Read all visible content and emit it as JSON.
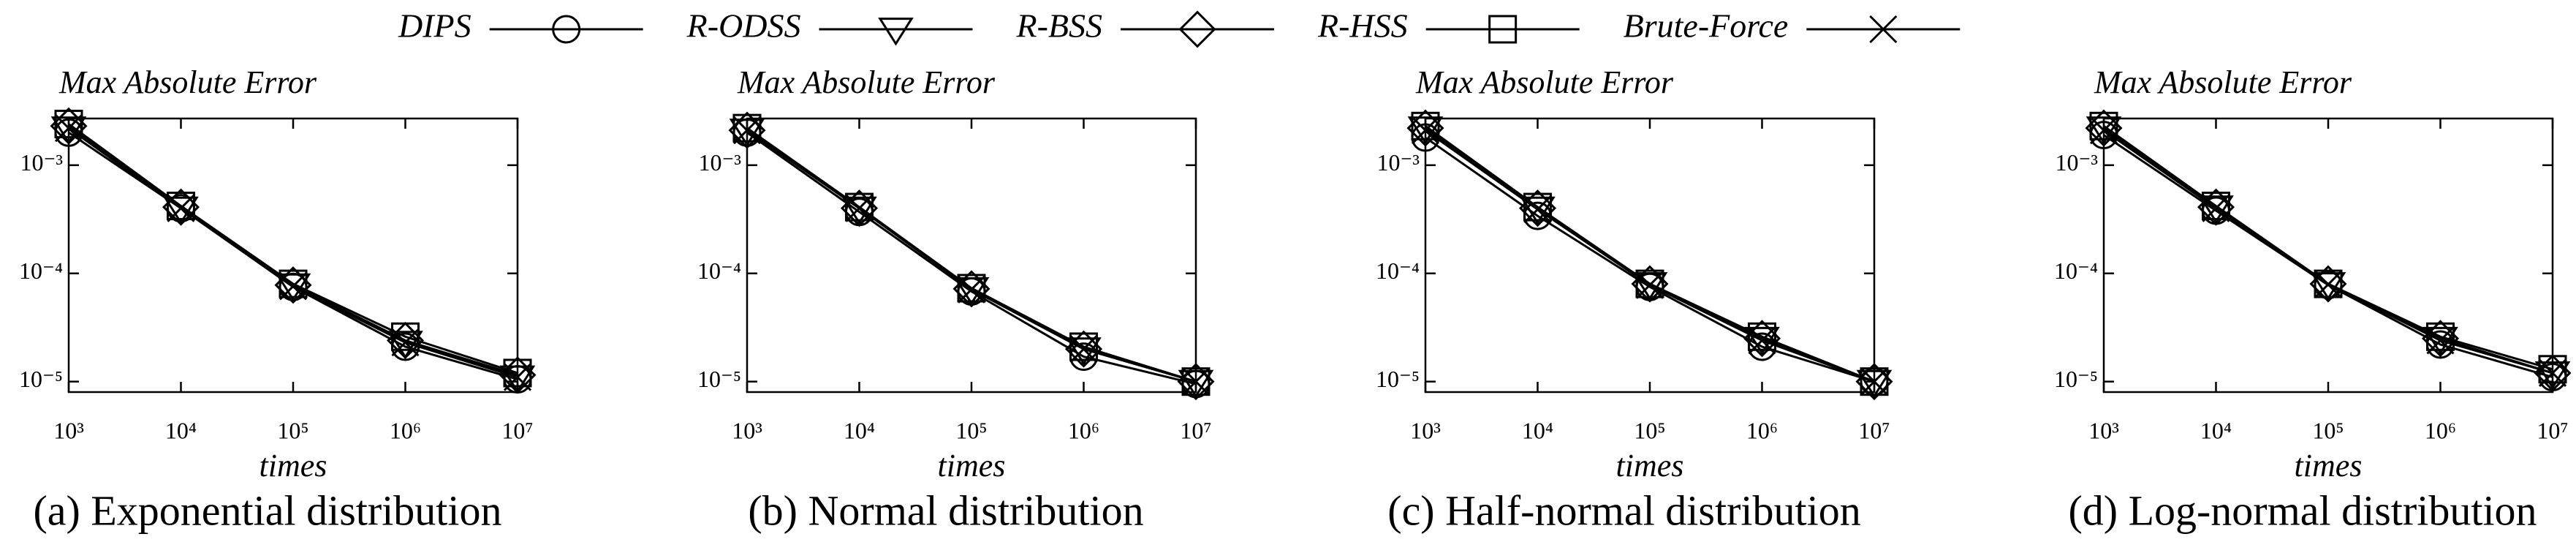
{
  "chart_data": [
    {
      "type": "line",
      "title": "Max Absolute Error",
      "xlabel": "times",
      "caption": "(a) Exponential distribution",
      "xscale": "log",
      "yscale": "log",
      "x": [
        1000,
        10000,
        100000,
        1000000,
        10000000
      ],
      "xlim": [
        1000,
        10000000
      ],
      "xticks": [
        {
          "value": 1000,
          "label": "10³"
        },
        {
          "value": 10000,
          "label": "10⁴"
        },
        {
          "value": 100000,
          "label": "10⁵"
        },
        {
          "value": 1000000,
          "label": "10⁶"
        },
        {
          "value": 10000000,
          "label": "10⁷"
        }
      ],
      "ylim": [
        8e-06,
        0.0027
      ],
      "yticks": [
        {
          "value": 1e-05,
          "label": "10⁻⁵"
        },
        {
          "value": 0.0001,
          "label": "10⁻⁴"
        },
        {
          "value": 0.001,
          "label": "10⁻³"
        }
      ],
      "series": [
        {
          "name": "DIPS",
          "color": "#000000",
          "marker": "circle",
          "values": [
            0.002,
            0.0004,
            7.5e-05,
            2.1e-05,
            1.05e-05
          ]
        },
        {
          "name": "R-ODSS",
          "color": "#000000",
          "marker": "triangle-down",
          "values": [
            0.0022,
            0.0004,
            7.8e-05,
            2.3e-05,
            1.1e-05
          ]
        },
        {
          "name": "R-BSS",
          "color": "#000000",
          "marker": "diamond",
          "values": [
            0.0023,
            0.00041,
            7.8e-05,
            2.4e-05,
            1.15e-05
          ]
        },
        {
          "name": "R-HSS",
          "color": "#000000",
          "marker": "square",
          "values": [
            0.0024,
            0.00042,
            8e-05,
            2.6e-05,
            1.2e-05
          ]
        },
        {
          "name": "Brute-Force",
          "color": "#000000",
          "marker": "x",
          "values": [
            0.0022,
            0.0004,
            7.6e-05,
            2.3e-05,
            1.1e-05
          ]
        }
      ]
    },
    {
      "type": "line",
      "title": "Max Absolute Error",
      "xlabel": "times",
      "caption": "(b) Normal distribution",
      "xscale": "log",
      "yscale": "log",
      "x": [
        1000,
        10000,
        100000,
        1000000,
        10000000
      ],
      "xlim": [
        1000,
        10000000
      ],
      "xticks": [
        {
          "value": 1000,
          "label": "10³"
        },
        {
          "value": 10000,
          "label": "10⁴"
        },
        {
          "value": 100000,
          "label": "10⁵"
        },
        {
          "value": 1000000,
          "label": "10⁶"
        },
        {
          "value": 10000000,
          "label": "10⁷"
        }
      ],
      "ylim": [
        8e-06,
        0.0027
      ],
      "yticks": [
        {
          "value": 1e-05,
          "label": "10⁻⁵"
        },
        {
          "value": 0.0001,
          "label": "10⁻⁴"
        },
        {
          "value": 0.001,
          "label": "10⁻³"
        }
      ],
      "series": [
        {
          "name": "DIPS",
          "color": "#000000",
          "marker": "circle",
          "values": [
            0.002,
            0.00037,
            6.8e-05,
            1.7e-05,
            9.5e-06
          ]
        },
        {
          "name": "R-ODSS",
          "color": "#000000",
          "marker": "triangle-down",
          "values": [
            0.0021,
            0.0004,
            7.2e-05,
            2e-05,
            1e-05
          ]
        },
        {
          "name": "R-BSS",
          "color": "#000000",
          "marker": "diamond",
          "values": [
            0.0021,
            0.0004,
            7.2e-05,
            2e-05,
            1e-05
          ]
        },
        {
          "name": "R-HSS",
          "color": "#000000",
          "marker": "square",
          "values": [
            0.0022,
            0.00041,
            7.3e-05,
            2.1e-05,
            1e-05
          ]
        },
        {
          "name": "Brute-Force",
          "color": "#000000",
          "marker": "x",
          "values": [
            0.0021,
            0.0004,
            7.1e-05,
            2e-05,
            1e-05
          ]
        }
      ]
    },
    {
      "type": "line",
      "title": "Max Absolute Error",
      "xlabel": "times",
      "caption": "(c) Half-normal distribution",
      "xscale": "log",
      "yscale": "log",
      "x": [
        1000,
        10000,
        100000,
        1000000,
        10000000
      ],
      "xlim": [
        1000,
        10000000
      ],
      "xticks": [
        {
          "value": 1000,
          "label": "10³"
        },
        {
          "value": 10000,
          "label": "10⁴"
        },
        {
          "value": 100000,
          "label": "10⁵"
        },
        {
          "value": 1000000,
          "label": "10⁶"
        },
        {
          "value": 10000000,
          "label": "10⁷"
        }
      ],
      "ylim": [
        8e-06,
        0.0027
      ],
      "yticks": [
        {
          "value": 1e-05,
          "label": "10⁻⁵"
        },
        {
          "value": 0.0001,
          "label": "10⁻⁴"
        },
        {
          "value": 0.001,
          "label": "10⁻³"
        }
      ],
      "series": [
        {
          "name": "DIPS",
          "color": "#000000",
          "marker": "circle",
          "values": [
            0.0018,
            0.00034,
            7.5e-05,
            2.1e-05,
            1e-05
          ]
        },
        {
          "name": "R-ODSS",
          "color": "#000000",
          "marker": "triangle-down",
          "values": [
            0.0022,
            0.0004,
            8e-05,
            2.5e-05,
            1e-05
          ]
        },
        {
          "name": "R-BSS",
          "color": "#000000",
          "marker": "diamond",
          "values": [
            0.0022,
            0.0004,
            8e-05,
            2.5e-05,
            1e-05
          ]
        },
        {
          "name": "R-HSS",
          "color": "#000000",
          "marker": "square",
          "values": [
            0.0023,
            0.00041,
            8e-05,
            2.6e-05,
            1e-05
          ]
        },
        {
          "name": "Brute-Force",
          "color": "#000000",
          "marker": "x",
          "values": [
            0.0021,
            0.00039,
            7.8e-05,
            2.4e-05,
            1e-05
          ]
        }
      ]
    },
    {
      "type": "line",
      "title": "Max Absolute Error",
      "xlabel": "times",
      "caption": "(d) Log-normal distribution",
      "xscale": "log",
      "yscale": "log",
      "x": [
        1000,
        10000,
        100000,
        1000000,
        10000000
      ],
      "xlim": [
        1000,
        10000000
      ],
      "xticks": [
        {
          "value": 1000,
          "label": "10³"
        },
        {
          "value": 10000,
          "label": "10⁴"
        },
        {
          "value": 100000,
          "label": "10⁵"
        },
        {
          "value": 1000000,
          "label": "10⁶"
        },
        {
          "value": 10000000,
          "label": "10⁷"
        }
      ],
      "ylim": [
        8e-06,
        0.0027
      ],
      "yticks": [
        {
          "value": 1e-05,
          "label": "10⁻⁵"
        },
        {
          "value": 0.0001,
          "label": "10⁻⁴"
        },
        {
          "value": 0.001,
          "label": "10⁻³"
        }
      ],
      "series": [
        {
          "name": "DIPS",
          "color": "#000000",
          "marker": "circle",
          "values": [
            0.0019,
            0.00038,
            7.8e-05,
            2.2e-05,
            1.1e-05
          ]
        },
        {
          "name": "R-ODSS",
          "color": "#000000",
          "marker": "triangle-down",
          "values": [
            0.0022,
            0.00041,
            8e-05,
            2.5e-05,
            1.2e-05
          ]
        },
        {
          "name": "R-BSS",
          "color": "#000000",
          "marker": "diamond",
          "values": [
            0.0022,
            0.00041,
            8e-05,
            2.5e-05,
            1.2e-05
          ]
        },
        {
          "name": "R-HSS",
          "color": "#000000",
          "marker": "square",
          "values": [
            0.0023,
            0.00042,
            8e-05,
            2.6e-05,
            1.3e-05
          ]
        },
        {
          "name": "Brute-Force",
          "color": "#000000",
          "marker": "x",
          "values": [
            0.0021,
            0.0004,
            7.9e-05,
            2.4e-05,
            1.2e-05
          ]
        }
      ]
    }
  ]
}
